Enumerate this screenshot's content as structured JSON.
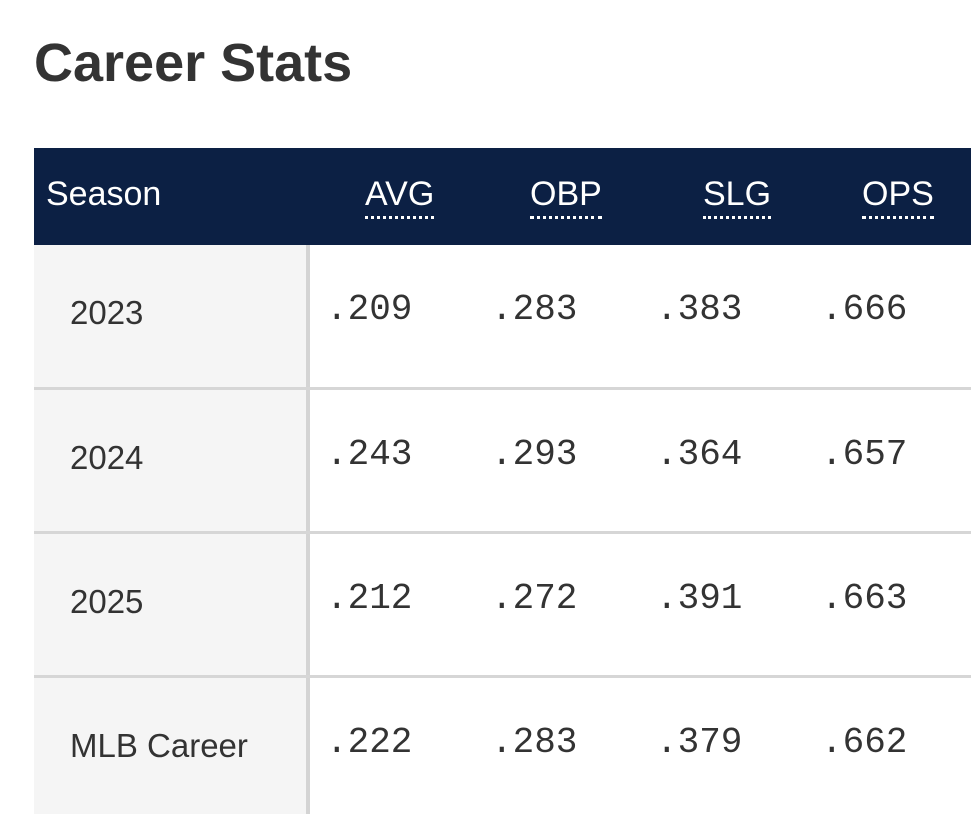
{
  "page": {
    "title": "Career Stats"
  },
  "table": {
    "header": {
      "season": "Season",
      "avg": "AVG",
      "obp": "OBP",
      "slg": "SLG",
      "ops": "OPS"
    },
    "rows": [
      {
        "season": "2023",
        "avg": ".209",
        "obp": ".283",
        "slg": ".383",
        "ops": ".666"
      },
      {
        "season": "2024",
        "avg": ".243",
        "obp": ".293",
        "slg": ".364",
        "ops": ".657"
      },
      {
        "season": "2025",
        "avg": ".212",
        "obp": ".272",
        "slg": ".391",
        "ops": ".663"
      },
      {
        "season": "MLB Career",
        "avg": ".222",
        "obp": ".283",
        "slg": ".379",
        "ops": ".662"
      }
    ]
  },
  "colors": {
    "header_background": "#0c2044",
    "header_text": "#ffffff",
    "season_cell_background": "#f5f5f5",
    "divider": "#d6d6d6",
    "title_text": "#333333"
  }
}
